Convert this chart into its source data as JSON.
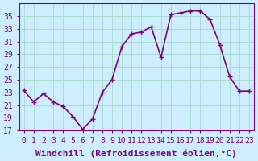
{
  "x": [
    0,
    1,
    2,
    3,
    4,
    5,
    6,
    7,
    8,
    9,
    10,
    11,
    12,
    13,
    14,
    15,
    16,
    17,
    18,
    19,
    20,
    21,
    22,
    23
  ],
  "y": [
    23.3,
    21.5,
    22.8,
    21.5,
    20.8,
    19.2,
    17.2,
    18.8,
    23.0,
    25.0,
    30.2,
    32.2,
    32.5,
    33.3,
    28.5,
    35.2,
    35.5,
    35.8,
    35.8,
    34.5,
    30.5,
    25.5,
    23.2,
    23.2
  ],
  "line_color": "#800080",
  "marker": "+",
  "background_color": "#cceeff",
  "grid_color": "#aaddcc",
  "xlabel": "Windchill (Refroidissement éolien,°C)",
  "ylabel": "",
  "ylim": [
    17,
    37
  ],
  "xlim": [
    -0.5,
    23.5
  ],
  "yticks": [
    17,
    19,
    21,
    23,
    25,
    27,
    29,
    31,
    33,
    35
  ],
  "xticks": [
    0,
    1,
    2,
    3,
    4,
    5,
    6,
    7,
    8,
    9,
    10,
    11,
    12,
    13,
    14,
    15,
    16,
    17,
    18,
    19,
    20,
    21,
    22,
    23
  ],
  "font_color": "#800080",
  "font_family": "monospace",
  "font_size": 7,
  "xlabel_fontsize": 8,
  "line_width": 1.2,
  "marker_size": 5
}
